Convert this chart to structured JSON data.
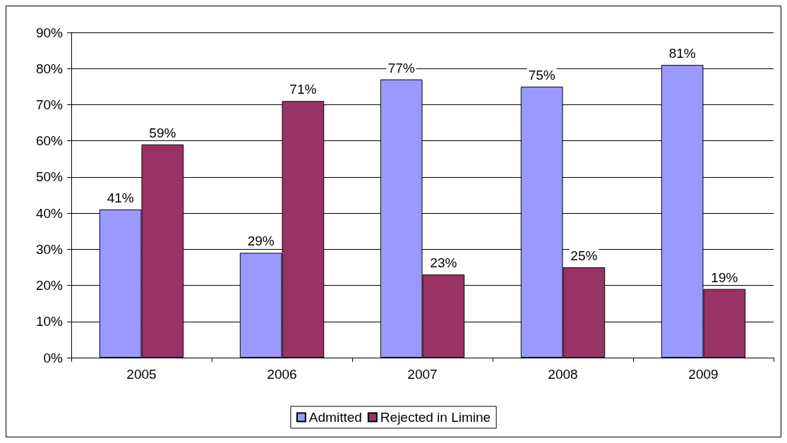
{
  "chart_data": {
    "type": "bar",
    "categories": [
      "2005",
      "2006",
      "2007",
      "2008",
      "2009"
    ],
    "series": [
      {
        "name": "Admitted",
        "color": "#9999ff",
        "values": [
          41,
          29,
          77,
          75,
          81
        ],
        "value_labels": [
          "41%",
          "29%",
          "77%",
          "75%",
          "81%"
        ]
      },
      {
        "name": "Rejected in Limine",
        "color": "#993366",
        "values": [
          59,
          71,
          23,
          25,
          19
        ],
        "value_labels": [
          "59%",
          "71%",
          "23%",
          "25%",
          "19%"
        ]
      }
    ],
    "ylim": [
      0,
      90
    ],
    "yticks": [
      {
        "value": 0,
        "label": "0%"
      },
      {
        "value": 10,
        "label": "10%"
      },
      {
        "value": 20,
        "label": "20%"
      },
      {
        "value": 30,
        "label": "30%"
      },
      {
        "value": 40,
        "label": "40%"
      },
      {
        "value": 50,
        "label": "50%"
      },
      {
        "value": 60,
        "label": "60%"
      },
      {
        "value": 70,
        "label": "70%"
      },
      {
        "value": 80,
        "label": "80%"
      },
      {
        "value": 90,
        "label": "90%"
      }
    ],
    "grid": "y",
    "legend": "bottom"
  }
}
